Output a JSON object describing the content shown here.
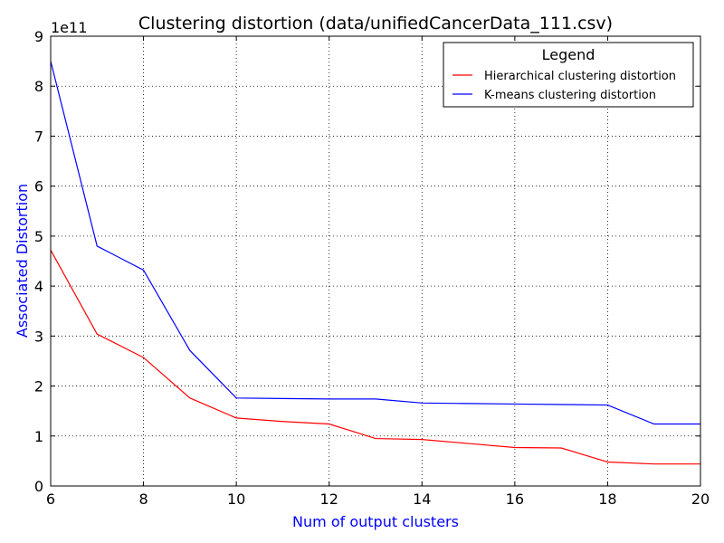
{
  "chart_data": {
    "type": "line",
    "title": "Clustering distortion (data/unifiedCancerData_111.csv)",
    "xlabel": "Num of output clusters",
    "ylabel": "Associated Distortion",
    "y_multiplier": "1e11",
    "xlim": [
      6,
      20
    ],
    "ylim": [
      0,
      9
    ],
    "x_ticks": [
      6,
      8,
      10,
      12,
      14,
      16,
      18,
      20
    ],
    "y_ticks": [
      0,
      1,
      2,
      3,
      4,
      5,
      6,
      7,
      8,
      9
    ],
    "grid": true,
    "legend": {
      "title": "Legend",
      "placement": "top-right"
    },
    "series": [
      {
        "name": "Hierarchical clustering distortion",
        "color": "#ff0000",
        "x": [
          6,
          7,
          8,
          9,
          10,
          11,
          12,
          13,
          14,
          15,
          16,
          17,
          18,
          19,
          20
        ],
        "values": [
          4.72,
          3.04,
          2.57,
          1.76,
          1.36,
          1.29,
          1.24,
          0.95,
          0.93,
          0.85,
          0.77,
          0.76,
          0.48,
          0.44,
          0.44
        ]
      },
      {
        "name": "K-means clustering distortion",
        "color": "#0000ff",
        "x": [
          6,
          7,
          8,
          9,
          10,
          11,
          12,
          13,
          14,
          15,
          16,
          17,
          18,
          19,
          20
        ],
        "values": [
          8.5,
          4.8,
          4.32,
          2.71,
          1.76,
          1.75,
          1.74,
          1.74,
          1.66,
          1.65,
          1.64,
          1.63,
          1.62,
          1.24,
          1.24
        ]
      }
    ]
  }
}
